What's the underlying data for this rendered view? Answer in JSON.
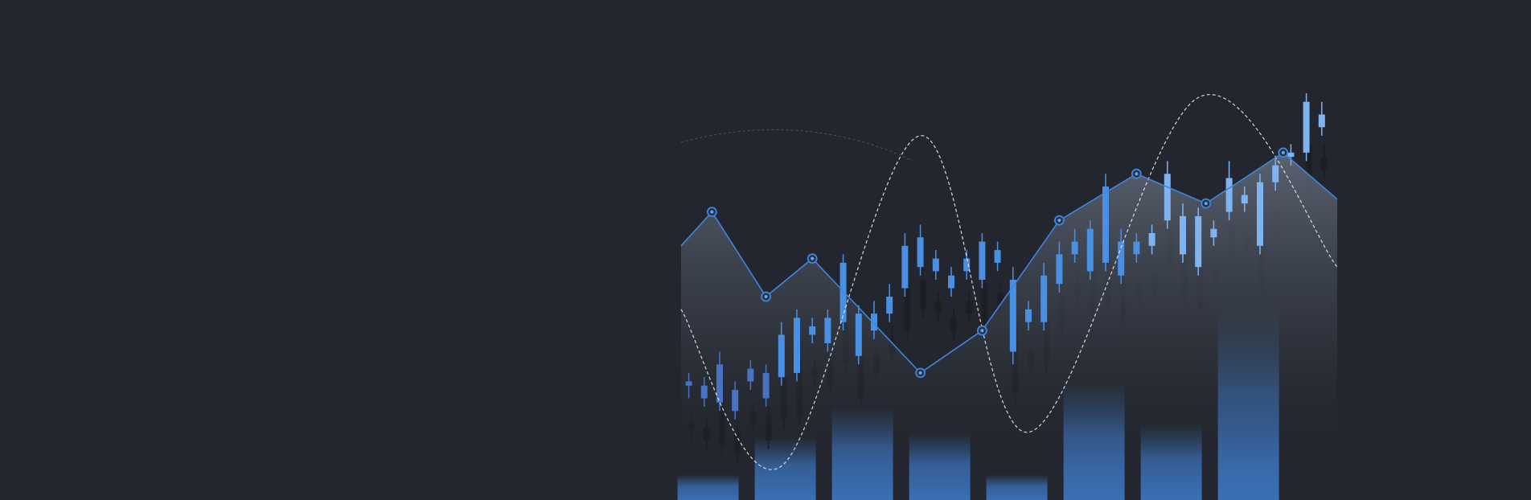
{
  "colors": {
    "background": "#23262e",
    "line": "#3d86e0",
    "candle_up": "#4a90e2",
    "candle_up_light": "#7fb4f0",
    "candle_shadow": "#1b1d22",
    "bar": "#3a6fb5",
    "area_top": "#58616e",
    "dashed": "#e8ecf2"
  },
  "chart_data": {
    "type": "line",
    "title": "",
    "xlabel": "",
    "ylabel": "",
    "axes_visible": false,
    "grid": false,
    "ylim": [
      0,
      100
    ],
    "line": [
      {
        "x": 0,
        "y": 60
      },
      {
        "x": 4,
        "y": 68
      },
      {
        "x": 11,
        "y": 48
      },
      {
        "x": 17,
        "y": 57
      },
      {
        "x": 31,
        "y": 30
      },
      {
        "x": 39,
        "y": 40
      },
      {
        "x": 49,
        "y": 66
      },
      {
        "x": 59,
        "y": 77
      },
      {
        "x": 68,
        "y": 70
      },
      {
        "x": 78,
        "y": 82
      },
      {
        "x": 85,
        "y": 71
      }
    ],
    "markers": [
      1,
      2,
      3,
      4,
      5,
      6,
      7,
      8,
      9
    ],
    "bars": [
      {
        "x": 3.5,
        "value": 6
      },
      {
        "x": 13.5,
        "value": 15
      },
      {
        "x": 23.5,
        "value": 22
      },
      {
        "x": 33.5,
        "value": 16
      },
      {
        "x": 43.5,
        "value": 6
      },
      {
        "x": 53.5,
        "value": 28
      },
      {
        "x": 63.5,
        "value": 18
      },
      {
        "x": 73.5,
        "value": 46
      }
    ],
    "candles": [
      {
        "x": 1,
        "o": 27,
        "c": 28,
        "h": 30,
        "l": 24
      },
      {
        "x": 3,
        "o": 24,
        "c": 27,
        "h": 29,
        "l": 22
      },
      {
        "x": 5,
        "o": 23,
        "c": 32,
        "h": 35,
        "l": 21
      },
      {
        "x": 7,
        "o": 21,
        "c": 26,
        "h": 28,
        "l": 19
      },
      {
        "x": 9,
        "o": 28,
        "c": 31,
        "h": 33,
        "l": 26
      },
      {
        "x": 11,
        "o": 24,
        "c": 30,
        "h": 32,
        "l": 22
      },
      {
        "x": 13,
        "o": 29,
        "c": 39,
        "h": 42,
        "l": 27
      },
      {
        "x": 15,
        "o": 30,
        "c": 43,
        "h": 45,
        "l": 28
      },
      {
        "x": 17,
        "o": 39,
        "c": 41,
        "h": 43,
        "l": 37
      },
      {
        "x": 19,
        "o": 37,
        "c": 43,
        "h": 45,
        "l": 35
      },
      {
        "x": 21,
        "o": 42,
        "c": 56,
        "h": 58,
        "l": 40
      },
      {
        "x": 23,
        "o": 34,
        "c": 44,
        "h": 46,
        "l": 32
      },
      {
        "x": 25,
        "o": 40,
        "c": 44,
        "h": 47,
        "l": 38
      },
      {
        "x": 27,
        "o": 44,
        "c": 48,
        "h": 51,
        "l": 42
      },
      {
        "x": 29,
        "o": 50,
        "c": 60,
        "h": 63,
        "l": 48
      },
      {
        "x": 31,
        "o": 55,
        "c": 62,
        "h": 65,
        "l": 53
      },
      {
        "x": 33,
        "o": 54,
        "c": 57,
        "h": 59,
        "l": 52
      },
      {
        "x": 35,
        "o": 50,
        "c": 53,
        "h": 55,
        "l": 48
      },
      {
        "x": 37,
        "o": 54,
        "c": 57,
        "h": 59,
        "l": 52
      },
      {
        "x": 39,
        "o": 52,
        "c": 61,
        "h": 63,
        "l": 50
      },
      {
        "x": 41,
        "o": 56,
        "c": 59,
        "h": 61,
        "l": 54
      },
      {
        "x": 43,
        "o": 35,
        "c": 52,
        "h": 55,
        "l": 32
      },
      {
        "x": 45,
        "o": 42,
        "c": 45,
        "h": 47,
        "l": 40
      },
      {
        "x": 47,
        "o": 42,
        "c": 53,
        "h": 56,
        "l": 40
      },
      {
        "x": 49,
        "o": 51,
        "c": 58,
        "h": 61,
        "l": 49
      },
      {
        "x": 51,
        "o": 58,
        "c": 61,
        "h": 64,
        "l": 56
      },
      {
        "x": 53,
        "o": 54,
        "c": 64,
        "h": 66,
        "l": 52
      },
      {
        "x": 55,
        "o": 56,
        "c": 74,
        "h": 77,
        "l": 54
      },
      {
        "x": 57,
        "o": 53,
        "c": 61,
        "h": 64,
        "l": 51
      },
      {
        "x": 59,
        "o": 58,
        "c": 61,
        "h": 63,
        "l": 56
      },
      {
        "x": 61,
        "o": 60,
        "c": 63,
        "h": 65,
        "l": 58
      },
      {
        "x": 63,
        "o": 66,
        "c": 77,
        "h": 80,
        "l": 64
      },
      {
        "x": 65,
        "o": 58,
        "c": 67,
        "h": 70,
        "l": 56
      },
      {
        "x": 67,
        "o": 55,
        "c": 67,
        "h": 69,
        "l": 53
      },
      {
        "x": 69,
        "o": 62,
        "c": 64,
        "h": 66,
        "l": 60
      },
      {
        "x": 71,
        "o": 68,
        "c": 76,
        "h": 80,
        "l": 66
      },
      {
        "x": 73,
        "o": 70,
        "c": 72,
        "h": 74,
        "l": 68
      },
      {
        "x": 75,
        "o": 60,
        "c": 75,
        "h": 77,
        "l": 58
      },
      {
        "x": 77,
        "o": 75,
        "c": 79,
        "h": 81,
        "l": 73
      },
      {
        "x": 79,
        "o": 81,
        "c": 82,
        "h": 84,
        "l": 79
      },
      {
        "x": 81,
        "o": 82,
        "c": 94,
        "h": 96,
        "l": 80
      },
      {
        "x": 83,
        "o": 91,
        "c": 88,
        "h": 94,
        "l": 86
      }
    ],
    "dashed_wave": [
      {
        "x": 0,
        "y": 45
      },
      {
        "x": 13,
        "y": 8
      },
      {
        "x": 31,
        "y": 86
      },
      {
        "x": 45,
        "y": 16
      },
      {
        "x": 67,
        "y": 95
      },
      {
        "x": 85,
        "y": 55
      }
    ]
  }
}
